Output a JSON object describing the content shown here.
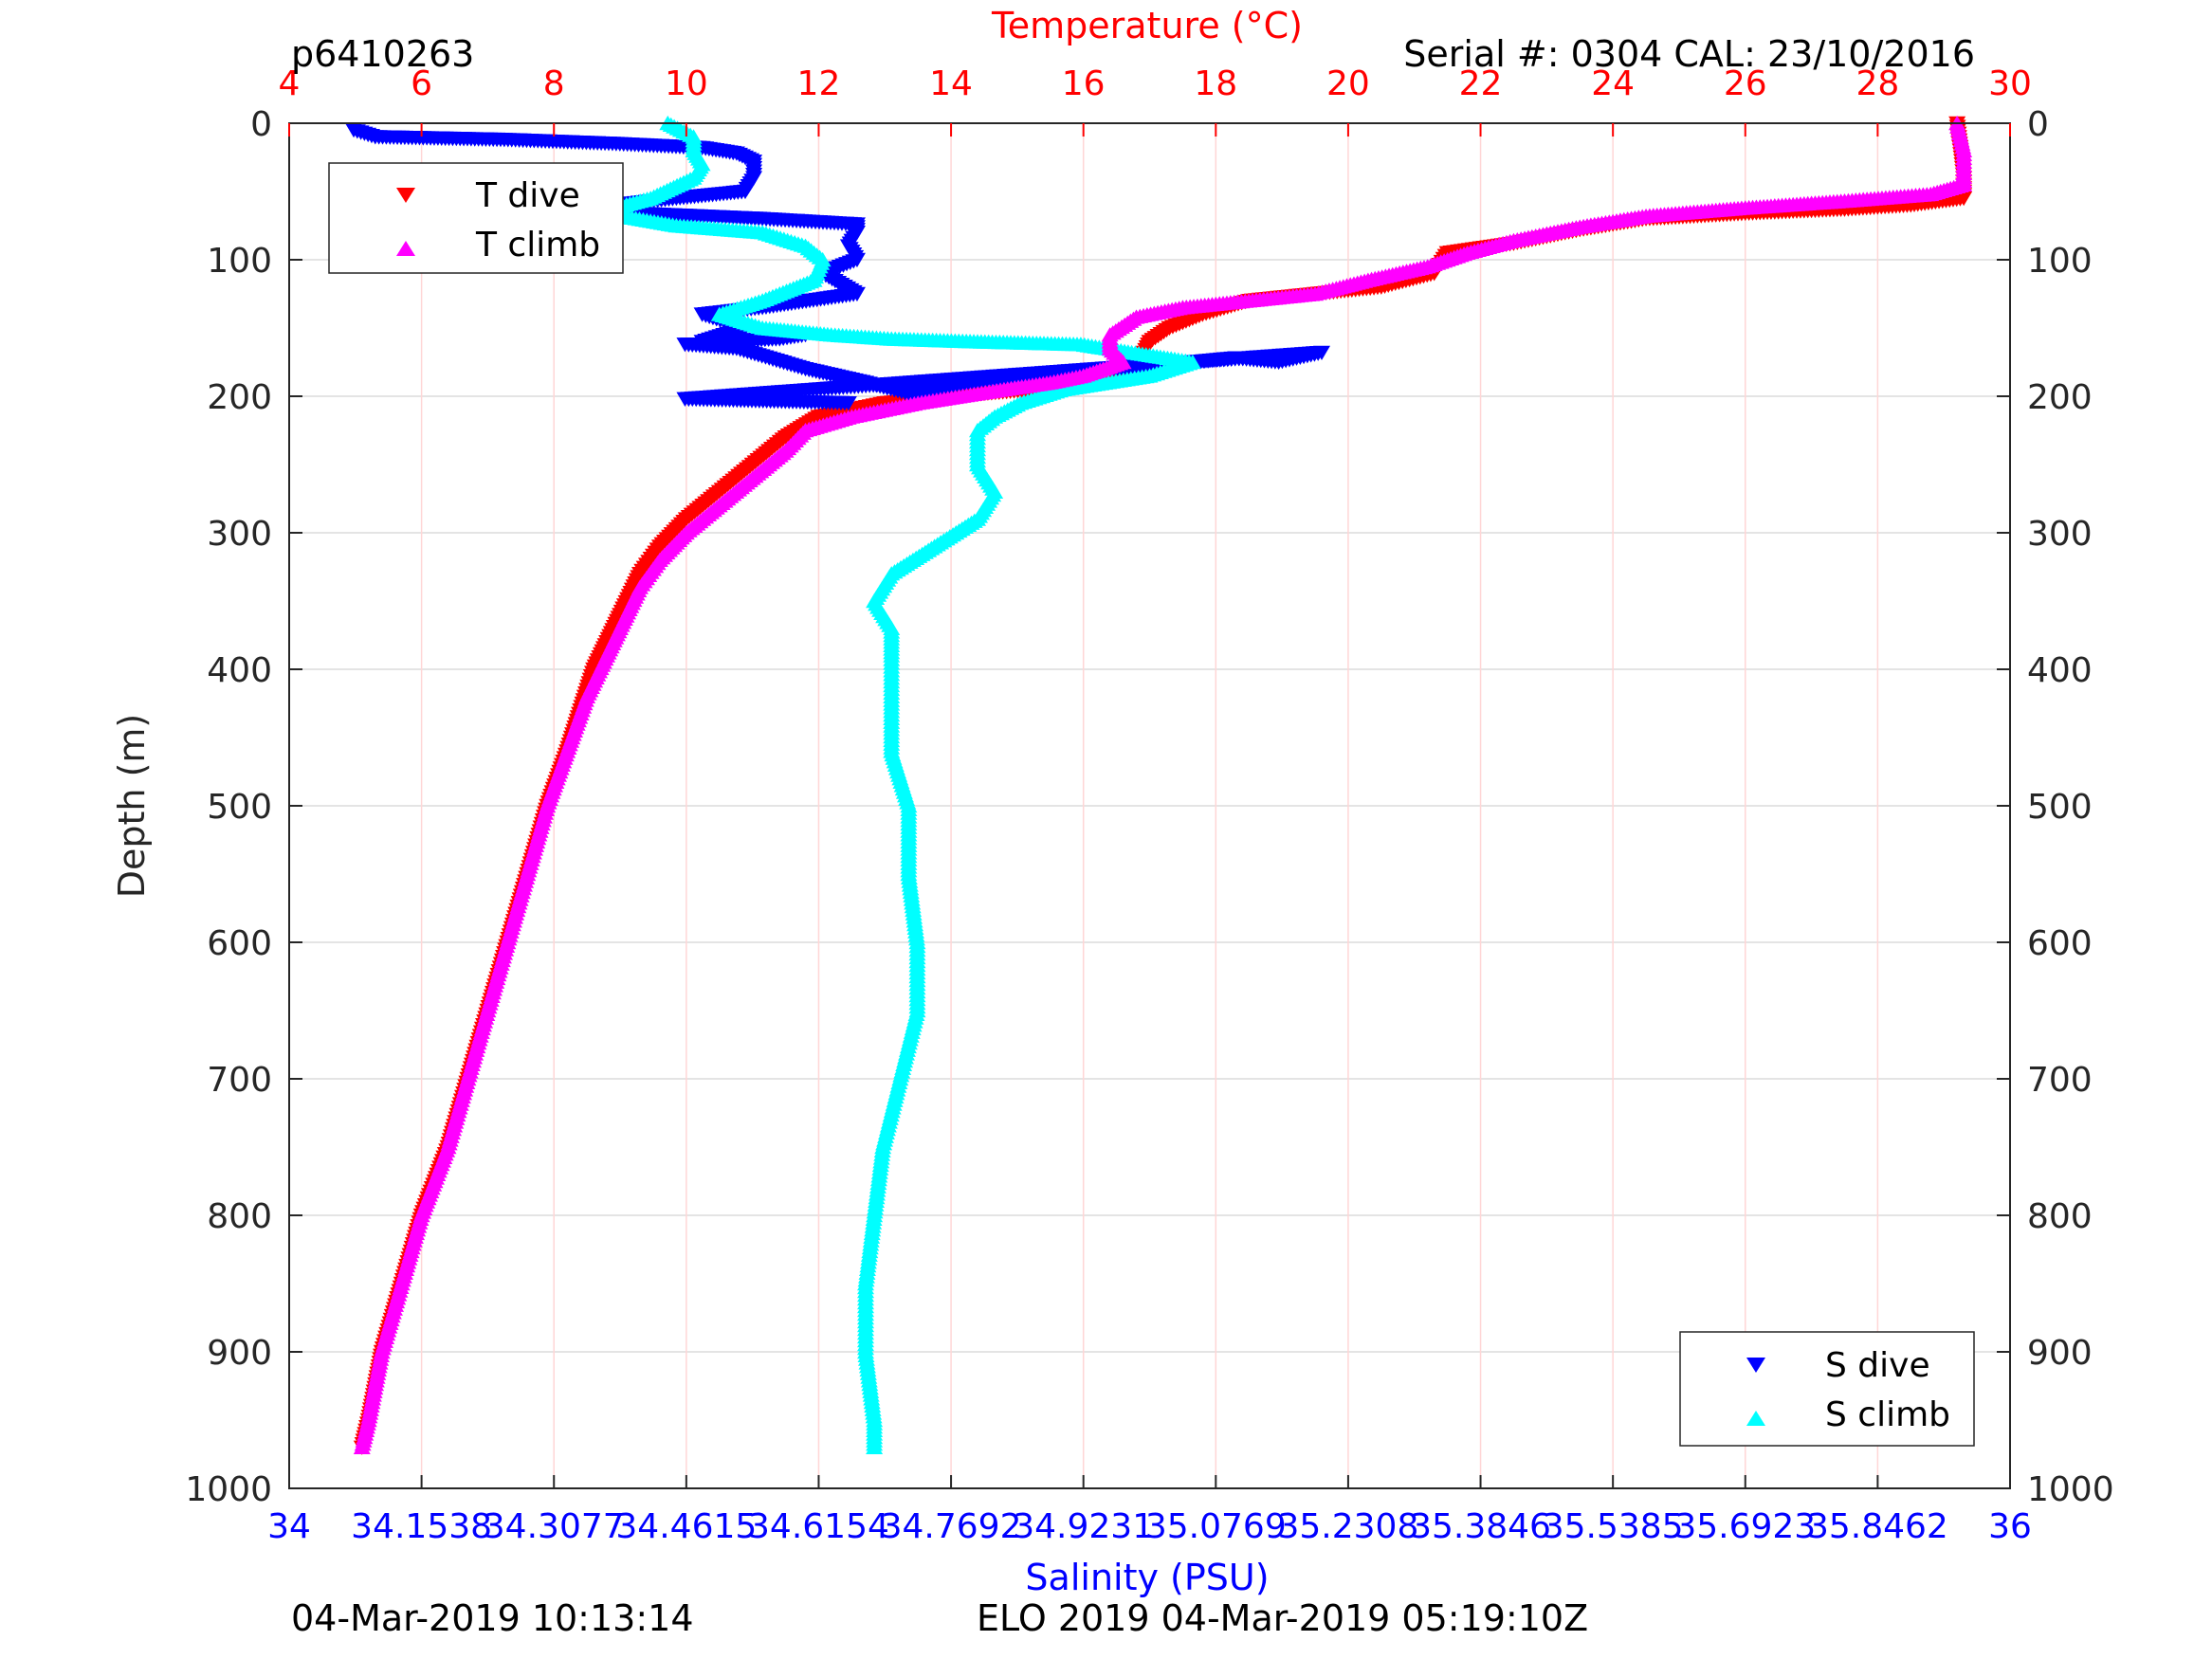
{
  "header": {
    "profile_id": "p6410263",
    "serial": "Serial #: 0304  CAL: 23/10/2016"
  },
  "footer": {
    "left": "04-Mar-2019 10:13:14",
    "center": "ELO 2019 04-Mar-2019 05:19:10Z"
  },
  "chart_data": {
    "type": "scatter",
    "ylabel": "Depth (m)",
    "ylim": [
      1000,
      0
    ],
    "yticks": [
      "0",
      "100",
      "200",
      "300",
      "400",
      "500",
      "600",
      "700",
      "800",
      "900",
      "1000"
    ],
    "top_axis": {
      "label": "Temperature (°C)",
      "range": [
        4,
        30
      ],
      "ticks": [
        "4",
        "6",
        "8",
        "10",
        "12",
        "14",
        "16",
        "18",
        "20",
        "22",
        "24",
        "26",
        "28",
        "30"
      ],
      "color": "#ff0000"
    },
    "bottom_axis": {
      "label": "Salinity (PSU)",
      "range": [
        34,
        36
      ],
      "ticks": [
        "34",
        "34.1538",
        "34.3077",
        "34.4615",
        "34.6154",
        "34.7692",
        "34.9231",
        "35.0769",
        "35.2308",
        "35.3846",
        "35.5385",
        "35.6923",
        "35.8462",
        "36"
      ],
      "color": "#0000ff"
    },
    "grid": true,
    "legends": [
      {
        "placement": "top-left",
        "entries": [
          "T dive",
          "T climb"
        ]
      },
      {
        "placement": "bottom-right",
        "entries": [
          "S dive",
          "S climb"
        ]
      }
    ],
    "series": [
      {
        "name": "T dive",
        "axis": "temperature",
        "color": "#ff0000",
        "marker": "triangle-down",
        "points": [
          [
            29.2,
            0
          ],
          [
            29.25,
            20
          ],
          [
            29.3,
            40
          ],
          [
            29.3,
            55
          ],
          [
            28.5,
            60
          ],
          [
            27.5,
            63
          ],
          [
            26,
            66
          ],
          [
            24.5,
            70
          ],
          [
            23.5,
            78
          ],
          [
            22.5,
            88
          ],
          [
            21.5,
            95
          ],
          [
            21.3,
            110
          ],
          [
            20.5,
            120
          ],
          [
            19.5,
            125
          ],
          [
            18.5,
            130
          ],
          [
            17.8,
            140
          ],
          [
            17.3,
            150
          ],
          [
            17,
            160
          ],
          [
            16.9,
            170
          ],
          [
            16.6,
            185
          ],
          [
            15.8,
            193
          ],
          [
            14.5,
            198
          ],
          [
            13,
            205
          ],
          [
            12,
            215
          ],
          [
            11.5,
            230
          ],
          [
            11,
            250
          ],
          [
            10.5,
            270
          ],
          [
            10,
            290
          ],
          [
            9.6,
            310
          ],
          [
            9.3,
            330
          ],
          [
            9.0,
            360
          ],
          [
            8.8,
            380
          ],
          [
            8.6,
            400
          ],
          [
            8.4,
            430
          ],
          [
            8.2,
            460
          ],
          [
            7.9,
            500
          ],
          [
            7.6,
            550
          ],
          [
            7.3,
            600
          ],
          [
            7.0,
            650
          ],
          [
            6.7,
            700
          ],
          [
            6.4,
            750
          ],
          [
            6.0,
            800
          ],
          [
            5.7,
            850
          ],
          [
            5.4,
            900
          ],
          [
            5.2,
            950
          ],
          [
            5.1,
            970
          ]
        ]
      },
      {
        "name": "T climb",
        "axis": "temperature",
        "color": "#ff00ff",
        "marker": "triangle-up",
        "points": [
          [
            29.2,
            0
          ],
          [
            29.3,
            20
          ],
          [
            29.3,
            45
          ],
          [
            28.8,
            52
          ],
          [
            27.5,
            57
          ],
          [
            26,
            62
          ],
          [
            24.5,
            68
          ],
          [
            23.5,
            76
          ],
          [
            22.5,
            86
          ],
          [
            21.8,
            95
          ],
          [
            21.2,
            105
          ],
          [
            20.3,
            115
          ],
          [
            19.5,
            125
          ],
          [
            18.5,
            130
          ],
          [
            17.5,
            135
          ],
          [
            16.8,
            142
          ],
          [
            16.4,
            155
          ],
          [
            16.4,
            165
          ],
          [
            16.6,
            175
          ],
          [
            16.0,
            185
          ],
          [
            15.5,
            190
          ],
          [
            14.8,
            195
          ],
          [
            13.5,
            205
          ],
          [
            12.5,
            215
          ],
          [
            11.8,
            225
          ],
          [
            11.5,
            240
          ],
          [
            11,
            260
          ],
          [
            10.5,
            280
          ],
          [
            10,
            300
          ],
          [
            9.6,
            320
          ],
          [
            9.3,
            340
          ],
          [
            9.0,
            370
          ],
          [
            8.8,
            390
          ],
          [
            8.5,
            420
          ],
          [
            8.2,
            460
          ],
          [
            7.9,
            500
          ],
          [
            7.6,
            550
          ],
          [
            7.3,
            600
          ],
          [
            7.0,
            650
          ],
          [
            6.7,
            700
          ],
          [
            6.4,
            750
          ],
          [
            6.0,
            800
          ],
          [
            5.7,
            850
          ],
          [
            5.4,
            900
          ],
          [
            5.2,
            950
          ],
          [
            5.1,
            970
          ]
        ]
      },
      {
        "name": "S dive",
        "axis": "salinity",
        "color": "#0000ff",
        "marker": "triangle-down",
        "points": [
          [
            34.075,
            5
          ],
          [
            34.1,
            10
          ],
          [
            34.25,
            12
          ],
          [
            34.38,
            15
          ],
          [
            34.48,
            18
          ],
          [
            34.52,
            22
          ],
          [
            34.54,
            28
          ],
          [
            34.54,
            40
          ],
          [
            34.53,
            50
          ],
          [
            34.45,
            55
          ],
          [
            34.35,
            62
          ],
          [
            34.4,
            66
          ],
          [
            34.55,
            70
          ],
          [
            34.66,
            74
          ],
          [
            34.66,
            80
          ],
          [
            34.65,
            90
          ],
          [
            34.66,
            100
          ],
          [
            34.62,
            110
          ],
          [
            34.66,
            125
          ],
          [
            34.55,
            135
          ],
          [
            34.48,
            140
          ],
          [
            34.53,
            150
          ],
          [
            34.48,
            160
          ],
          [
            34.57,
            158
          ],
          [
            34.6,
            155
          ],
          [
            34.49,
            162
          ],
          [
            34.46,
            162
          ],
          [
            34.52,
            165
          ],
          [
            34.6,
            180
          ],
          [
            34.67,
            190
          ],
          [
            34.72,
            198
          ],
          [
            34.8,
            190
          ],
          [
            34.85,
            185
          ],
          [
            34.9,
            188
          ],
          [
            34.95,
            180
          ],
          [
            35.0,
            178
          ],
          [
            35.05,
            175
          ],
          [
            35.1,
            172
          ],
          [
            35.15,
            175
          ],
          [
            35.2,
            168
          ],
          [
            34.46,
            202
          ],
          [
            34.65,
            205
          ]
        ]
      },
      {
        "name": "S climb",
        "axis": "salinity",
        "color": "#00ffff",
        "marker": "triangle-up",
        "points": [
          [
            34.44,
            0
          ],
          [
            34.47,
            10
          ],
          [
            34.47,
            20
          ],
          [
            34.48,
            30
          ],
          [
            34.47,
            40
          ],
          [
            34.42,
            55
          ],
          [
            34.36,
            65
          ],
          [
            34.45,
            75
          ],
          [
            34.55,
            80
          ],
          [
            34.6,
            90
          ],
          [
            34.62,
            100
          ],
          [
            34.61,
            115
          ],
          [
            34.55,
            130
          ],
          [
            34.5,
            140
          ],
          [
            34.55,
            150
          ],
          [
            34.63,
            155
          ],
          [
            34.7,
            158
          ],
          [
            34.8,
            160
          ],
          [
            34.92,
            162
          ],
          [
            34.95,
            165
          ],
          [
            35.0,
            170
          ],
          [
            35.05,
            175
          ],
          [
            35.0,
            185
          ],
          [
            34.9,
            195
          ],
          [
            34.85,
            205
          ],
          [
            34.82,
            215
          ],
          [
            34.8,
            225
          ],
          [
            34.8,
            250
          ],
          [
            34.82,
            270
          ],
          [
            34.8,
            290
          ],
          [
            34.75,
            310
          ],
          [
            34.7,
            330
          ],
          [
            34.68,
            350
          ],
          [
            34.7,
            370
          ],
          [
            34.7,
            390
          ],
          [
            34.7,
            420
          ],
          [
            34.7,
            460
          ],
          [
            34.72,
            500
          ],
          [
            34.72,
            550
          ],
          [
            34.73,
            600
          ],
          [
            34.73,
            650
          ],
          [
            34.71,
            700
          ],
          [
            34.69,
            750
          ],
          [
            34.68,
            800
          ],
          [
            34.67,
            850
          ],
          [
            34.67,
            900
          ],
          [
            34.68,
            950
          ],
          [
            34.68,
            970
          ]
        ]
      }
    ]
  }
}
